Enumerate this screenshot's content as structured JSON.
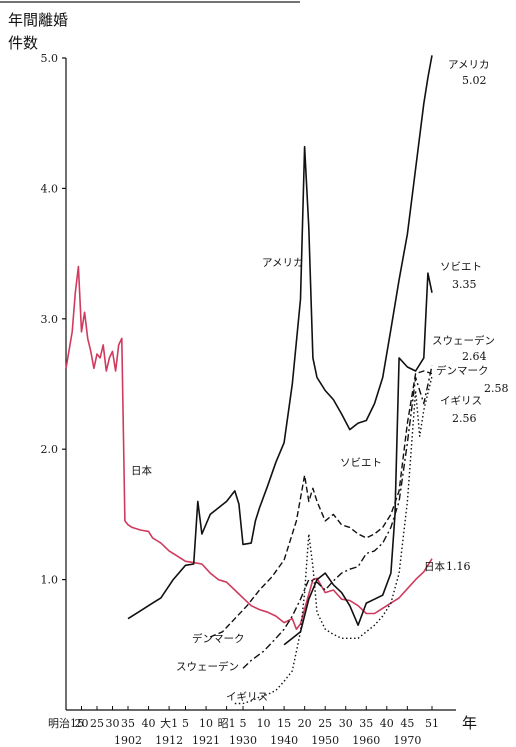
{
  "chart_data": {
    "type": "line",
    "title": "",
    "ylabel": "年間離婚\n件数",
    "xlabel": "年",
    "ylim": [
      0,
      5.0
    ],
    "xlim": [
      1882,
      1982
    ],
    "grid": false,
    "legend": "none (series labeled inline)",
    "yticks": [
      "1.0",
      "2.0",
      "3.0",
      "4.0",
      "5.0"
    ],
    "ytick_values": [
      1.0,
      2.0,
      3.0,
      4.0,
      5.0
    ],
    "xticks_top": [
      {
        "label": "明治15",
        "x": 1882
      },
      {
        "label": "20",
        "x": 1887
      },
      {
        "label": "25",
        "x": 1892
      },
      {
        "label": "30",
        "x": 1897
      },
      {
        "label": "35",
        "x": 1902
      },
      {
        "label": "40",
        "x": 1907
      },
      {
        "label": "大1",
        "x": 1912
      },
      {
        "label": "5",
        "x": 1916
      },
      {
        "label": "10",
        "x": 1921
      },
      {
        "label": "昭1",
        "x": 1926
      },
      {
        "label": "5",
        "x": 1930
      },
      {
        "label": "10",
        "x": 1935
      },
      {
        "label": "15",
        "x": 1940
      },
      {
        "label": "20",
        "x": 1945
      },
      {
        "label": "25",
        "x": 1950
      },
      {
        "label": "30",
        "x": 1955
      },
      {
        "label": "35",
        "x": 1960
      },
      {
        "label": "40",
        "x": 1965
      },
      {
        "label": "45",
        "x": 1970
      },
      {
        "label": "51",
        "x": 1976
      }
    ],
    "xticks_bottom": [
      {
        "label": "1902",
        "x": 1902
      },
      {
        "label": "1912",
        "x": 1912
      },
      {
        "label": "1921",
        "x": 1921
      },
      {
        "label": "1930",
        "x": 1930
      },
      {
        "label": "1940",
        "x": 1940
      },
      {
        "label": "1950",
        "x": 1950
      },
      {
        "label": "1960",
        "x": 1960
      },
      {
        "label": "1970",
        "x": 1970
      }
    ],
    "series": [
      {
        "name": "日本",
        "color": "#d03a5e",
        "style": "solid",
        "x": [
          1882,
          1884,
          1885,
          1886,
          1887,
          1888,
          1889,
          1890,
          1891,
          1892,
          1893,
          1894,
          1895,
          1896,
          1897,
          1898,
          1899,
          1900,
          1901,
          1902,
          1903,
          1905,
          1907,
          1908,
          1909,
          1910,
          1912,
          1914,
          1916,
          1918,
          1920,
          1922,
          1924,
          1926,
          1928,
          1930,
          1932,
          1934,
          1936,
          1938,
          1940,
          1942,
          1943,
          1944,
          1947,
          1948,
          1950,
          1952,
          1954,
          1956,
          1958,
          1960,
          1962,
          1964,
          1966,
          1968,
          1970,
          1972,
          1974,
          1976
        ],
        "y": [
          2.62,
          2.9,
          3.2,
          3.4,
          2.9,
          3.05,
          2.85,
          2.75,
          2.62,
          2.73,
          2.7,
          2.8,
          2.6,
          2.7,
          2.75,
          2.6,
          2.8,
          2.85,
          1.45,
          1.42,
          1.4,
          1.38,
          1.37,
          1.32,
          1.3,
          1.28,
          1.22,
          1.18,
          1.14,
          1.13,
          1.12,
          1.05,
          1.0,
          0.98,
          0.92,
          0.86,
          0.8,
          0.77,
          0.75,
          0.72,
          0.67,
          0.7,
          0.62,
          0.66,
          1.0,
          1.01,
          0.9,
          0.92,
          0.85,
          0.84,
          0.8,
          0.74,
          0.74,
          0.78,
          0.82,
          0.86,
          0.93,
          1.0,
          1.06,
          1.16
        ]
      },
      {
        "name": "アメリカ",
        "color": "#111111",
        "style": "solid",
        "x": [
          1902,
          1905,
          1908,
          1910,
          1913,
          1916,
          1918,
          1919,
          1920,
          1922,
          1924,
          1926,
          1928,
          1929,
          1930,
          1932,
          1933,
          1934,
          1936,
          1938,
          1940,
          1942,
          1944,
          1945,
          1946,
          1947,
          1948,
          1950,
          1952,
          1954,
          1956,
          1958,
          1960,
          1962,
          1964,
          1966,
          1968,
          1970,
          1972,
          1974,
          1975,
          1976
        ],
        "y": [
          0.7,
          0.76,
          0.82,
          0.86,
          1.0,
          1.11,
          1.12,
          1.6,
          1.35,
          1.5,
          1.55,
          1.6,
          1.68,
          1.58,
          1.27,
          1.28,
          1.45,
          1.55,
          1.72,
          1.9,
          2.05,
          2.5,
          3.15,
          4.32,
          3.7,
          2.7,
          2.55,
          2.45,
          2.38,
          2.27,
          2.15,
          2.2,
          2.22,
          2.35,
          2.55,
          2.92,
          3.3,
          3.65,
          4.15,
          4.65,
          4.85,
          5.02
        ]
      },
      {
        "name": "ソビエト",
        "color": "#111111",
        "style": "solid",
        "x": [
          1940,
          1944,
          1946,
          1948,
          1950,
          1952,
          1954,
          1956,
          1958,
          1960,
          1962,
          1964,
          1966,
          1967,
          1968,
          1970,
          1972,
          1974,
          1975,
          1976
        ],
        "y": [
          0.5,
          0.6,
          0.85,
          1.0,
          1.05,
          0.96,
          0.9,
          0.8,
          0.65,
          0.82,
          0.85,
          0.88,
          1.05,
          1.5,
          2.7,
          2.63,
          2.6,
          2.7,
          3.35,
          3.2
        ]
      },
      {
        "name": "スウェーデン",
        "color": "#111111",
        "style": "dash-dot",
        "x": [
          1930,
          1932,
          1935,
          1938,
          1940,
          1942,
          1944,
          1946,
          1948,
          1950,
          1952,
          1954,
          1956,
          1958,
          1960,
          1962,
          1964,
          1966,
          1968,
          1970,
          1972,
          1974,
          1976
        ],
        "y": [
          0.32,
          0.38,
          0.45,
          0.55,
          0.62,
          0.72,
          0.85,
          1.0,
          0.98,
          0.92,
          0.99,
          1.05,
          1.08,
          1.1,
          1.2,
          1.22,
          1.28,
          1.4,
          1.6,
          2.05,
          2.55,
          2.35,
          2.64
        ]
      },
      {
        "name": "デンマーク",
        "color": "#111111",
        "style": "dashed",
        "x": [
          1922,
          1925,
          1928,
          1931,
          1934,
          1937,
          1940,
          1943,
          1945,
          1946,
          1947,
          1948,
          1950,
          1952,
          1954,
          1956,
          1958,
          1960,
          1962,
          1964,
          1966,
          1968,
          1970,
          1972,
          1974,
          1976
        ],
        "y": [
          0.56,
          0.6,
          0.7,
          0.8,
          0.92,
          1.02,
          1.15,
          1.45,
          1.8,
          1.6,
          1.7,
          1.6,
          1.45,
          1.5,
          1.42,
          1.4,
          1.35,
          1.32,
          1.35,
          1.4,
          1.5,
          1.68,
          2.2,
          2.58,
          2.6,
          2.58
        ]
      },
      {
        "name": "イギリス",
        "color": "#111111",
        "style": "dotted",
        "x": [
          1928,
          1930,
          1932,
          1934,
          1936,
          1938,
          1940,
          1942,
          1944,
          1945,
          1946,
          1947,
          1948,
          1950,
          1952,
          1954,
          1956,
          1958,
          1960,
          1962,
          1964,
          1966,
          1968,
          1970,
          1972,
          1973,
          1974,
          1976
        ],
        "y": [
          0.05,
          0.05,
          0.07,
          0.1,
          0.12,
          0.15,
          0.22,
          0.3,
          0.6,
          0.9,
          1.35,
          1.1,
          0.75,
          0.62,
          0.58,
          0.55,
          0.55,
          0.55,
          0.6,
          0.65,
          0.72,
          0.82,
          1.05,
          1.6,
          2.45,
          2.1,
          2.3,
          2.56
        ]
      }
    ],
    "annotations": [
      {
        "text": "アメリカ",
        "num": "5.02",
        "series": "アメリカ"
      },
      {
        "text": "アメリカ",
        "num": "",
        "series": "アメリカ"
      },
      {
        "text": "ソビエト",
        "num": "3.35",
        "series": "ソビエト"
      },
      {
        "text": "ソビエト",
        "num": "",
        "series": "ソビエト"
      },
      {
        "text": "スウェーデン",
        "num": "2.64",
        "series": "スウェーデン"
      },
      {
        "text": "デンマーク",
        "num": "2.58",
        "series": "デンマーク"
      },
      {
        "text": "イギリス",
        "num": "2.56",
        "series": "イギリス"
      },
      {
        "text": "日本",
        "num": "",
        "series": "日本"
      },
      {
        "text": "日本",
        "num": "1.16",
        "series": "日本"
      },
      {
        "text": "デンマーク",
        "num": "",
        "series": "デンマーク"
      },
      {
        "text": "スウェーデン",
        "num": "",
        "series": "スウェーデン"
      },
      {
        "text": "イギリス",
        "num": "",
        "series": "イギリス"
      }
    ]
  }
}
